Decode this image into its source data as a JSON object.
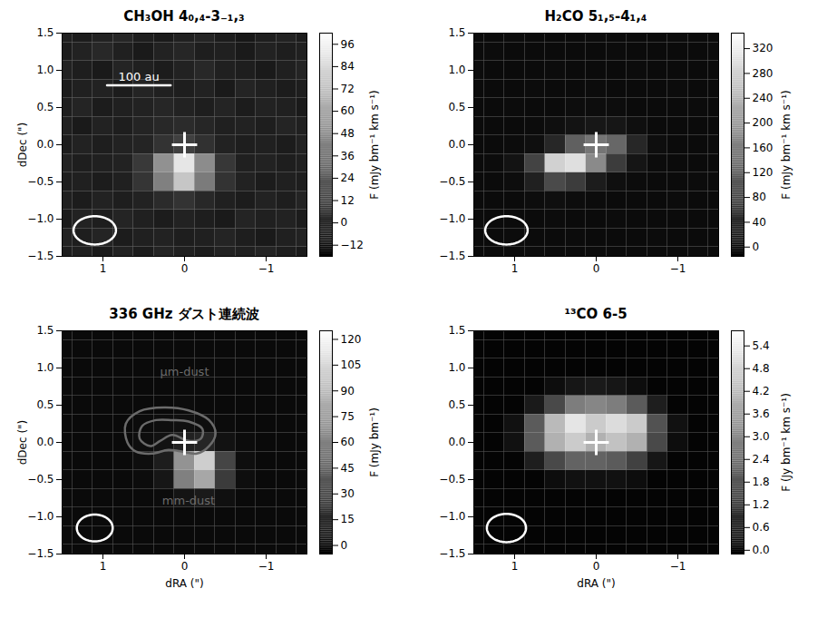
{
  "chart_data": [
    {
      "type": "heatmap",
      "title": "CH₃OH 4₀,₄-3₋₁,₃",
      "x": [
        1.5,
        1.25,
        1,
        0.75,
        0.5,
        0.25,
        0,
        -0.25,
        -0.5,
        -0.75,
        -1,
        -1.25,
        -1.5
      ],
      "y": [
        1.5,
        1.25,
        1,
        0.75,
        0.5,
        0.25,
        0,
        -0.25,
        -0.5,
        -0.75,
        -1,
        -1.25,
        -1.5
      ],
      "values": [
        [
          -3,
          -5,
          -2,
          0,
          -4,
          -6,
          -3,
          -1,
          -5,
          -7,
          -4,
          -2,
          -5
        ],
        [
          -5,
          -2,
          1,
          -3,
          -6,
          -2,
          0,
          -4,
          -3,
          -6,
          -2,
          -4,
          -3
        ],
        [
          -2,
          -4,
          -6,
          -1,
          -3,
          -5,
          -2,
          1,
          -3,
          -4,
          -6,
          -3,
          -1
        ],
        [
          -6,
          -3,
          -2,
          -5,
          -1,
          -3,
          -4,
          -2,
          -6,
          -1,
          -3,
          -5,
          -4
        ],
        [
          -4,
          -1,
          -5,
          -3,
          -2,
          0,
          -2,
          -4,
          -1,
          -5,
          -2,
          -3,
          -6
        ],
        [
          -3,
          -6,
          -2,
          -4,
          -1,
          1,
          2,
          0,
          -3,
          -2,
          -4,
          -1,
          -3
        ],
        [
          -5,
          -2,
          -4,
          -2,
          -1,
          6,
          12,
          5,
          -2,
          -4,
          -3,
          -5,
          -2
        ],
        [
          -2,
          -4,
          -3,
          -2,
          9,
          50,
          90,
          48,
          8,
          -3,
          -2,
          -4,
          -3
        ],
        [
          -4,
          -3,
          -5,
          -3,
          7,
          42,
          75,
          40,
          6,
          -2,
          -5,
          -3,
          -4
        ],
        [
          -3,
          -5,
          -2,
          -4,
          -2,
          2,
          6,
          1,
          -3,
          -5,
          -2,
          -4,
          -1
        ],
        [
          -6,
          -2,
          -4,
          -1,
          -3,
          -5,
          -2,
          -4,
          -6,
          -1,
          -3,
          -2,
          -5
        ],
        [
          -2,
          -4,
          -1,
          -5,
          -3,
          -2,
          -4,
          -3,
          -1,
          -4,
          -6,
          -3,
          -2
        ],
        [
          -4,
          -3,
          -6,
          -2,
          -5,
          -1,
          -3,
          -5,
          -2,
          -3,
          -1,
          -4,
          -6
        ]
      ],
      "xlim": [
        1.5,
        -1.5
      ],
      "ylim": [
        -1.5,
        1.5
      ],
      "xticks": [
        1,
        0,
        -1
      ],
      "yticks": [
        -1.5,
        {
          "value": -1,
          "label": "−1.0"
        },
        -0.5,
        {
          "value": 0,
          "label": "0.0"
        },
        0.5,
        {
          "value": 1,
          "label": "1.0"
        },
        1.5
      ],
      "ylabel": "dDec (\")",
      "colorbar": {
        "label": "F (mJy bm⁻¹ km s⁻¹)",
        "range": [
          -18,
          102
        ],
        "ticks": [
          -12,
          0,
          12,
          24,
          36,
          48,
          60,
          72,
          84,
          96
        ]
      },
      "beam": {
        "x": 1.1,
        "y": -1.15,
        "major": 0.52,
        "minor": 0.38
      },
      "star": {
        "x": 0,
        "y": 0,
        "marker": "plus"
      },
      "scalebar": {
        "label": "100 au",
        "x1": 0.95,
        "x2": 0.17,
        "y": 0.8
      }
    },
    {
      "type": "heatmap",
      "title": "H₂CO 5₁,₅-4₁,₄",
      "x": [
        1.5,
        1.25,
        1,
        0.75,
        0.5,
        0.25,
        0,
        -0.25,
        -0.5,
        -0.75,
        -1,
        -1.25,
        -1.5
      ],
      "y": [
        1.5,
        1.25,
        1,
        0.75,
        0.5,
        0.25,
        0,
        -0.25,
        -0.5,
        -0.75,
        -1,
        -1.25,
        -1.5
      ],
      "values": [
        [
          1,
          0,
          2,
          1,
          0,
          1,
          2,
          0,
          1,
          0,
          2,
          1,
          0
        ],
        [
          0,
          2,
          1,
          0,
          1,
          0,
          1,
          2,
          0,
          1,
          0,
          1,
          2
        ],
        [
          2,
          1,
          0,
          1,
          2,
          1,
          0,
          1,
          2,
          0,
          1,
          0,
          1
        ],
        [
          0,
          1,
          1,
          2,
          0,
          1,
          2,
          1,
          0,
          1,
          2,
          1,
          0
        ],
        [
          1,
          0,
          2,
          0,
          1,
          3,
          4,
          3,
          1,
          0,
          1,
          2,
          1
        ],
        [
          0,
          1,
          0,
          2,
          6,
          12,
          18,
          16,
          6,
          1,
          0,
          1,
          0
        ],
        [
          1,
          0,
          2,
          6,
          40,
          120,
          150,
          130,
          40,
          5,
          1,
          0,
          2
        ],
        [
          0,
          2,
          12,
          80,
          280,
          300,
          180,
          70,
          15,
          2,
          0,
          1,
          1
        ],
        [
          1,
          0,
          4,
          30,
          90,
          70,
          25,
          6,
          2,
          1,
          0,
          2,
          0
        ],
        [
          0,
          1,
          1,
          3,
          6,
          4,
          2,
          1,
          0,
          1,
          2,
          0,
          1
        ],
        [
          2,
          1,
          0,
          1,
          2,
          0,
          1,
          2,
          1,
          0,
          1,
          1,
          0
        ],
        [
          0,
          1,
          2,
          0,
          1,
          2,
          0,
          1,
          0,
          2,
          1,
          0,
          1
        ],
        [
          1,
          0,
          1,
          2,
          0,
          1,
          2,
          0,
          1,
          1,
          0,
          2,
          1
        ]
      ],
      "xlim": [
        1.5,
        -1.5
      ],
      "ylim": [
        -1.5,
        1.5
      ],
      "xticks": [
        1,
        0,
        -1
      ],
      "yticks": [
        -1.5,
        {
          "value": -1,
          "label": "−1.0"
        },
        -0.5,
        {
          "value": 0,
          "label": "0.0"
        },
        0.5,
        {
          "value": 1,
          "label": "1.0"
        },
        1.5
      ],
      "colorbar": {
        "label": "F (mJy bm⁻¹ km s⁻¹)",
        "range": [
          -15,
          345
        ],
        "ticks": [
          0,
          40,
          80,
          120,
          160,
          200,
          240,
          280,
          320
        ]
      },
      "beam": {
        "x": 1.1,
        "y": -1.15,
        "major": 0.52,
        "minor": 0.38
      },
      "star": {
        "x": 0,
        "y": 0,
        "marker": "plus"
      }
    },
    {
      "type": "heatmap",
      "title": "336 GHz ダスト連続波",
      "x": [
        1.5,
        1.25,
        1,
        0.75,
        0.5,
        0.25,
        0,
        -0.25,
        -0.5,
        -0.75,
        -1,
        -1.25,
        -1.5
      ],
      "y": [
        1.5,
        1.25,
        1,
        0.75,
        0.5,
        0.25,
        0,
        -0.25,
        -0.5,
        -0.75,
        -1,
        -1.25,
        -1.5
      ],
      "values": [
        [
          0,
          0,
          0,
          0,
          0,
          0,
          0,
          0,
          0,
          0,
          0,
          0,
          0
        ],
        [
          0,
          0,
          0,
          0,
          0,
          0,
          0,
          0,
          0,
          0,
          0,
          0,
          0
        ],
        [
          0,
          0,
          0,
          0,
          0,
          0,
          0,
          0,
          0,
          0,
          0,
          0,
          0
        ],
        [
          0,
          0,
          0,
          0,
          0,
          0,
          0,
          0,
          0,
          0,
          0,
          0,
          0
        ],
        [
          0,
          0,
          0,
          0,
          0,
          0,
          1,
          0,
          0,
          0,
          0,
          0,
          0
        ],
        [
          0,
          0,
          0,
          0,
          1,
          2,
          3,
          2,
          1,
          0,
          0,
          0,
          0
        ],
        [
          0,
          0,
          0,
          0,
          2,
          4,
          12,
          14,
          4,
          1,
          0,
          0,
          0
        ],
        [
          0,
          0,
          0,
          0,
          2,
          10,
          70,
          100,
          30,
          2,
          0,
          0,
          0
        ],
        [
          0,
          0,
          0,
          0,
          1,
          6,
          60,
          80,
          25,
          2,
          0,
          0,
          0
        ],
        [
          0,
          0,
          0,
          0,
          0,
          1,
          5,
          8,
          3,
          0,
          0,
          0,
          0
        ],
        [
          0,
          0,
          0,
          0,
          0,
          0,
          0,
          0,
          0,
          0,
          0,
          0,
          0
        ],
        [
          0,
          0,
          0,
          0,
          0,
          0,
          0,
          0,
          0,
          0,
          0,
          0,
          0
        ],
        [
          0,
          0,
          0,
          0,
          0,
          0,
          0,
          0,
          0,
          0,
          0,
          0,
          0
        ]
      ],
      "xlim": [
        1.5,
        -1.5
      ],
      "ylim": [
        -1.5,
        1.5
      ],
      "xticks": [
        1,
        0,
        -1
      ],
      "yticks": [
        -1.5,
        {
          "value": -1,
          "label": "−1.0"
        },
        -0.5,
        {
          "value": 0,
          "label": "0.0"
        },
        0.5,
        {
          "value": 1,
          "label": "1.0"
        },
        1.5
      ],
      "xlabel": "dRA (\")",
      "ylabel": "dDec (\")",
      "colorbar": {
        "label": "F (mJy bm⁻¹)",
        "range": [
          -5,
          125
        ],
        "ticks": [
          0,
          15,
          30,
          45,
          60,
          75,
          90,
          105,
          120
        ]
      },
      "beam": {
        "x": 1.1,
        "y": -1.15,
        "major": 0.44,
        "minor": 0.36
      },
      "star": {
        "x": 0,
        "y": 0,
        "marker": "plus"
      },
      "contours": [
        [
          [
            0.7,
            0.0
          ],
          [
            0.72,
            0.25
          ],
          [
            0.55,
            0.42
          ],
          [
            0.25,
            0.47
          ],
          [
            -0.05,
            0.43
          ],
          [
            -0.3,
            0.3
          ],
          [
            -0.38,
            0.12
          ],
          [
            -0.3,
            -0.05
          ],
          [
            -0.15,
            -0.15
          ],
          [
            0.05,
            -0.12
          ],
          [
            0.2,
            -0.1
          ],
          [
            0.4,
            -0.15
          ],
          [
            0.6,
            -0.12
          ]
        ],
        [
          [
            0.55,
            0.05
          ],
          [
            0.52,
            0.22
          ],
          [
            0.35,
            0.3
          ],
          [
            0.15,
            0.3
          ],
          [
            -0.05,
            0.28
          ],
          [
            -0.22,
            0.18
          ],
          [
            -0.2,
            0.05
          ],
          [
            -0.05,
            0.02
          ],
          [
            0.15,
            0.1
          ],
          [
            0.3,
            0.02
          ],
          [
            0.42,
            -0.05
          ]
        ]
      ],
      "annotations": [
        {
          "text": "µm-dust",
          "x": 0,
          "y": 0.95
        },
        {
          "text": "mm-dust",
          "x": -0.05,
          "y": -0.78
        }
      ]
    },
    {
      "type": "heatmap",
      "title": "¹³CO 6-5",
      "x": [
        1.5,
        1.25,
        1,
        0.75,
        0.5,
        0.25,
        0,
        -0.25,
        -0.5,
        -0.75,
        -1,
        -1.25,
        -1.5
      ],
      "y": [
        1.5,
        1.25,
        1,
        0.75,
        0.5,
        0.25,
        0,
        -0.25,
        -0.5,
        -0.75,
        -1,
        -1.25,
        -1.5
      ],
      "values": [
        [
          0,
          0,
          0,
          0,
          0,
          0,
          0,
          0,
          0,
          0,
          0,
          0,
          0
        ],
        [
          0,
          0,
          0,
          0,
          0,
          0,
          0,
          0,
          0,
          0,
          0,
          0,
          0
        ],
        [
          0,
          0,
          0,
          0,
          0,
          0,
          0,
          0,
          0,
          0,
          0,
          0,
          0
        ],
        [
          0,
          0,
          0,
          0,
          0.2,
          0.4,
          0.5,
          0.4,
          0.2,
          0,
          0,
          0,
          0
        ],
        [
          0,
          0,
          0,
          0.5,
          1.6,
          2.8,
          3.0,
          2.8,
          2.0,
          0.6,
          0,
          0,
          0
        ],
        [
          0,
          0,
          0.3,
          2.0,
          4.2,
          5.2,
          4.6,
          5.0,
          4.6,
          1.8,
          0.3,
          0,
          0
        ],
        [
          0,
          0,
          0.3,
          2.0,
          4.0,
          4.6,
          4.0,
          4.4,
          4.0,
          1.6,
          0.2,
          0,
          0
        ],
        [
          0,
          0,
          0,
          0.6,
          1.6,
          2.2,
          2.2,
          2.0,
          1.4,
          0.4,
          0,
          0,
          0
        ],
        [
          0,
          0,
          0,
          0,
          0.2,
          0.3,
          0.3,
          0.3,
          0.2,
          0,
          0,
          0,
          0
        ],
        [
          0,
          0,
          0,
          0,
          0,
          0,
          0,
          0,
          0,
          0,
          0,
          0,
          0
        ],
        [
          0,
          0,
          0,
          0,
          0,
          0,
          0,
          0,
          0,
          0,
          0,
          0,
          0
        ],
        [
          0,
          0,
          0,
          0,
          0,
          0,
          0,
          0,
          0,
          0,
          0,
          0,
          0
        ],
        [
          0,
          0,
          0,
          0,
          0,
          0,
          0,
          0,
          0,
          0,
          0,
          0,
          0
        ]
      ],
      "xlim": [
        1.5,
        -1.5
      ],
      "ylim": [
        -1.5,
        1.5
      ],
      "xticks": [
        1,
        0,
        -1
      ],
      "yticks": [
        -1.5,
        {
          "value": -1,
          "label": "−1.0"
        },
        -0.5,
        {
          "value": 0,
          "label": "0.0"
        },
        0.5,
        {
          "value": 1,
          "label": "1.0"
        },
        1.5
      ],
      "xlabel": "dRA (\")",
      "colorbar": {
        "label": "F (Jy bm⁻¹ km s⁻¹)",
        "range": [
          -0.1,
          5.8
        ],
        "ticks": [
          {
            "value": 0,
            "label": "0.0"
          },
          0.6,
          1.2,
          1.8,
          2.4,
          {
            "value": 3,
            "label": "3.0"
          },
          3.6,
          4.2,
          4.8,
          5.4
        ]
      },
      "beam": {
        "x": 1.1,
        "y": -1.15,
        "major": 0.48,
        "minor": 0.38
      },
      "star": {
        "x": 0,
        "y": 0,
        "marker": "plus"
      }
    }
  ]
}
